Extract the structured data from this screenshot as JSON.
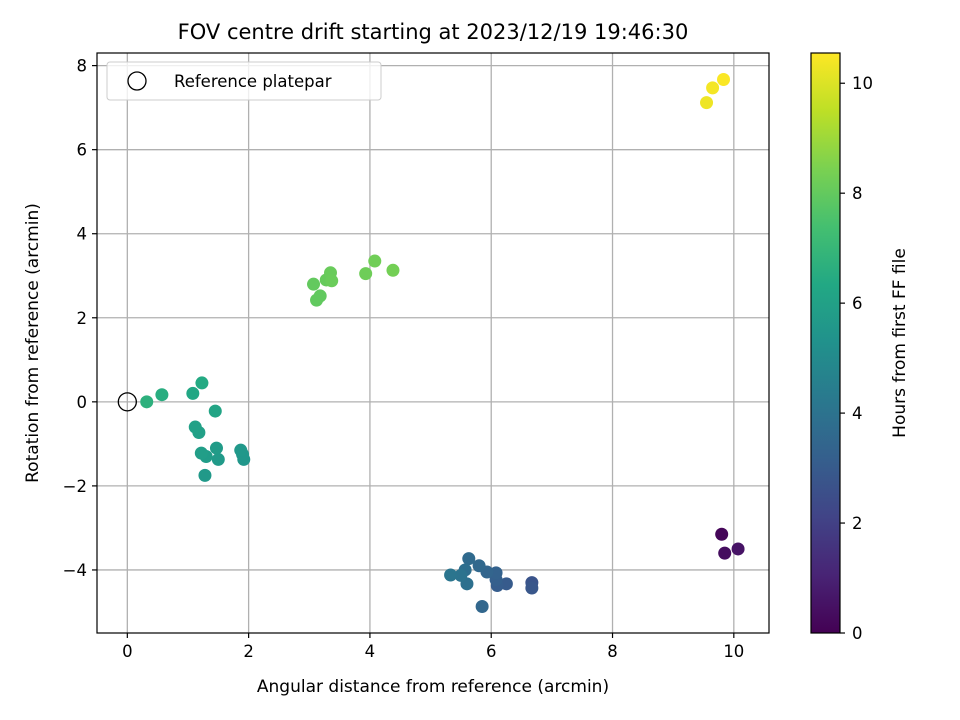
{
  "chart_data": {
    "type": "scatter",
    "title": "FOV centre drift starting at 2023/12/19 19:46:30",
    "xlabel": "Angular distance from reference (arcmin)",
    "ylabel": "Rotation from reference (arcmin)",
    "xlim": [
      -0.5,
      10.58
    ],
    "ylim": [
      -5.5,
      8.3
    ],
    "xticks": [
      0,
      2,
      4,
      6,
      8,
      10
    ],
    "yticks": [
      -4,
      -2,
      0,
      2,
      4,
      6,
      8
    ],
    "grid": true,
    "legend": {
      "placement": "top-left",
      "entries": [
        "Reference platepar"
      ]
    },
    "reference_point": {
      "x": 0,
      "y": 0
    },
    "colorbar": {
      "label": "Hours from first FF file",
      "colormap": "viridis",
      "range": [
        0,
        10.55
      ],
      "ticks": [
        0,
        2,
        4,
        6,
        8,
        10
      ]
    },
    "points": [
      {
        "x": 9.8,
        "y": -3.15,
        "hours": 0.15
      },
      {
        "x": 9.85,
        "y": -3.6,
        "hours": 0.35
      },
      {
        "x": 10.07,
        "y": -3.5,
        "hours": 0.55
      },
      {
        "x": 6.67,
        "y": -4.3,
        "hours": 2.75
      },
      {
        "x": 6.67,
        "y": -4.43,
        "hours": 2.85
      },
      {
        "x": 6.25,
        "y": -4.33,
        "hours": 3.0
      },
      {
        "x": 6.1,
        "y": -4.37,
        "hours": 3.1
      },
      {
        "x": 6.08,
        "y": -4.23,
        "hours": 3.2
      },
      {
        "x": 6.08,
        "y": -4.07,
        "hours": 3.3
      },
      {
        "x": 5.93,
        "y": -4.05,
        "hours": 3.4
      },
      {
        "x": 5.8,
        "y": -3.9,
        "hours": 3.55
      },
      {
        "x": 5.63,
        "y": -3.73,
        "hours": 3.65
      },
      {
        "x": 5.85,
        "y": -4.87,
        "hours": 3.5
      },
      {
        "x": 5.57,
        "y": -4.0,
        "hours": 3.8
      },
      {
        "x": 5.6,
        "y": -4.33,
        "hours": 3.9
      },
      {
        "x": 5.5,
        "y": -4.13,
        "hours": 4.0
      },
      {
        "x": 5.33,
        "y": -4.12,
        "hours": 4.1
      },
      {
        "x": 1.92,
        "y": -1.37,
        "hours": 5.5
      },
      {
        "x": 1.9,
        "y": -1.25,
        "hours": 5.55
      },
      {
        "x": 1.87,
        "y": -1.15,
        "hours": 5.6
      },
      {
        "x": 1.5,
        "y": -1.37,
        "hours": 5.7
      },
      {
        "x": 1.47,
        "y": -1.1,
        "hours": 5.75
      },
      {
        "x": 1.3,
        "y": -1.3,
        "hours": 5.8
      },
      {
        "x": 1.22,
        "y": -1.22,
        "hours": 5.85
      },
      {
        "x": 1.28,
        "y": -1.75,
        "hours": 5.65
      },
      {
        "x": 1.18,
        "y": -0.73,
        "hours": 5.95
      },
      {
        "x": 1.12,
        "y": -0.6,
        "hours": 6.0
      },
      {
        "x": 1.45,
        "y": -0.22,
        "hours": 6.15
      },
      {
        "x": 1.08,
        "y": 0.2,
        "hours": 6.3
      },
      {
        "x": 1.23,
        "y": 0.45,
        "hours": 6.4
      },
      {
        "x": 0.57,
        "y": 0.17,
        "hours": 6.55
      },
      {
        "x": 0.32,
        "y": 0.0,
        "hours": 6.7
      },
      {
        "x": 3.07,
        "y": 2.8,
        "hours": 8.0
      },
      {
        "x": 3.12,
        "y": 2.42,
        "hours": 7.95
      },
      {
        "x": 3.18,
        "y": 2.52,
        "hours": 7.98
      },
      {
        "x": 3.28,
        "y": 2.9,
        "hours": 8.05
      },
      {
        "x": 3.35,
        "y": 3.07,
        "hours": 8.1
      },
      {
        "x": 3.37,
        "y": 2.88,
        "hours": 8.12
      },
      {
        "x": 3.93,
        "y": 3.05,
        "hours": 8.2
      },
      {
        "x": 4.08,
        "y": 3.35,
        "hours": 8.25
      },
      {
        "x": 4.38,
        "y": 3.13,
        "hours": 8.3
      },
      {
        "x": 9.55,
        "y": 7.12,
        "hours": 10.3
      },
      {
        "x": 9.65,
        "y": 7.47,
        "hours": 10.4
      },
      {
        "x": 9.83,
        "y": 7.67,
        "hours": 10.5
      }
    ]
  }
}
